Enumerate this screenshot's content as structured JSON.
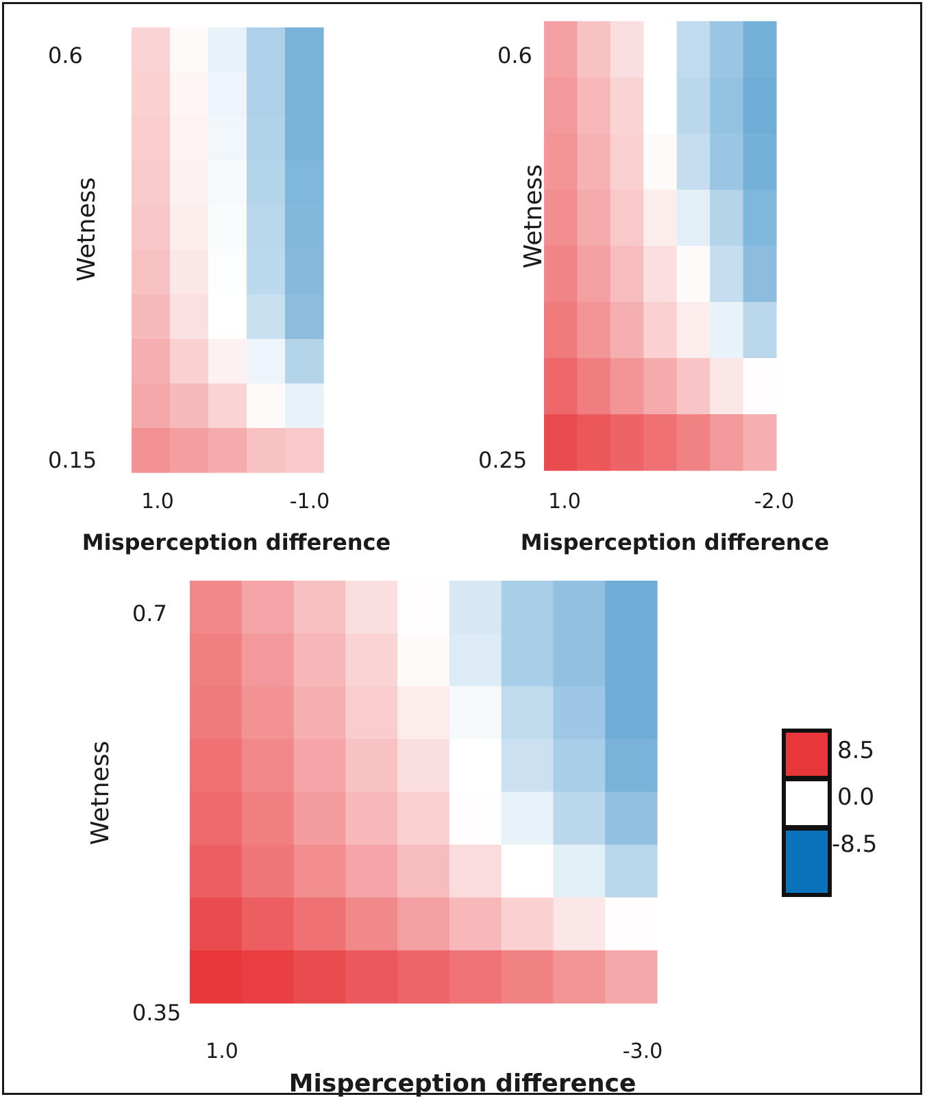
{
  "chart_data": [
    {
      "type": "heatmap",
      "xlabel": "Misperception difference",
      "ylabel": "Wetness",
      "x_tick_labels": [
        "1.0",
        "-1.0"
      ],
      "y_tick_labels": [
        "0.6",
        "0.15"
      ],
      "x_range": [
        1.0,
        -1.0
      ],
      "y_range": [
        0.15,
        0.6
      ],
      "n_cols": 5,
      "n_rows": 10,
      "values_top_to_bottom": [
        [
          1.8,
          0.2,
          -0.8,
          -2.8,
          -4.6
        ],
        [
          2.0,
          0.4,
          -0.6,
          -2.8,
          -4.6
        ],
        [
          2.1,
          0.5,
          -0.5,
          -2.7,
          -4.6
        ],
        [
          2.2,
          0.6,
          -0.3,
          -2.6,
          -4.4
        ],
        [
          2.4,
          0.8,
          -0.2,
          -2.4,
          -4.3
        ],
        [
          2.6,
          1.0,
          -0.1,
          -2.3,
          -4.2
        ],
        [
          2.9,
          1.3,
          0.0,
          -1.9,
          -4.0
        ],
        [
          3.4,
          2.0,
          0.6,
          -0.6,
          -2.6
        ],
        [
          3.7,
          2.9,
          1.8,
          0.2,
          -0.8
        ],
        [
          4.6,
          4.1,
          3.6,
          2.6,
          2.3
        ]
      ]
    },
    {
      "type": "heatmap",
      "xlabel": "Misperception difference",
      "ylabel": "Wetness",
      "x_tick_labels": [
        "1.0",
        "-2.0"
      ],
      "y_tick_labels": [
        "0.6",
        "0.25"
      ],
      "x_range": [
        1.0,
        -2.0
      ],
      "y_range": [
        0.25,
        0.6
      ],
      "n_cols": 7,
      "n_rows": 8,
      "values_top_to_bottom": [
        [
          4.0,
          2.6,
          1.4,
          0.0,
          -2.2,
          -3.5,
          -4.8
        ],
        [
          4.3,
          3.0,
          1.8,
          0.0,
          -2.4,
          -3.7,
          -5.0
        ],
        [
          4.5,
          3.3,
          2.0,
          0.2,
          -2.0,
          -3.5,
          -4.8
        ],
        [
          4.8,
          3.6,
          2.3,
          0.8,
          -1.0,
          -2.6,
          -4.4
        ],
        [
          5.2,
          4.0,
          2.8,
          1.4,
          0.2,
          -2.0,
          -4.0
        ],
        [
          5.6,
          4.5,
          3.4,
          2.0,
          0.8,
          -0.8,
          -2.4
        ],
        [
          6.4,
          5.5,
          4.5,
          3.6,
          2.5,
          1.0,
          0.1
        ],
        [
          7.6,
          7.1,
          6.6,
          6.0,
          5.3,
          4.3,
          3.4
        ]
      ]
    },
    {
      "type": "heatmap",
      "xlabel": "Misperception difference",
      "ylabel": "Wetness",
      "x_tick_labels": [
        "1.0",
        "-3.0"
      ],
      "y_tick_labels": [
        "0.7",
        "0.35"
      ],
      "x_range": [
        1.0,
        -3.0
      ],
      "y_range": [
        0.35,
        0.7
      ],
      "n_cols": 9,
      "n_rows": 8,
      "values_top_to_bottom": [
        [
          5.0,
          3.8,
          2.7,
          1.4,
          0.1,
          -1.4,
          -3.0,
          -3.8,
          -5.0
        ],
        [
          5.4,
          4.3,
          3.1,
          1.8,
          0.2,
          -1.2,
          -3.0,
          -3.8,
          -5.0
        ],
        [
          5.6,
          4.6,
          3.4,
          2.1,
          0.8,
          -0.3,
          -2.2,
          -3.4,
          -5.0
        ],
        [
          6.0,
          5.0,
          3.8,
          2.6,
          1.4,
          0.0,
          -1.8,
          -3.0,
          -4.6
        ],
        [
          6.3,
          5.4,
          4.2,
          3.0,
          2.0,
          0.1,
          -0.8,
          -2.4,
          -3.8
        ],
        [
          6.8,
          5.8,
          4.8,
          3.8,
          2.8,
          1.5,
          0.0,
          -1.0,
          -2.4
        ],
        [
          7.6,
          6.8,
          6.0,
          5.0,
          4.0,
          3.0,
          2.0,
          1.0,
          0.1
        ],
        [
          8.5,
          8.1,
          7.6,
          7.0,
          6.5,
          5.9,
          5.3,
          4.5,
          3.7
        ]
      ]
    }
  ],
  "legend": {
    "entries": [
      {
        "label": "8.5",
        "color": "#e8363a"
      },
      {
        "label": "0.0",
        "color": "#ffffff"
      },
      {
        "label": "-8.5",
        "color": "#0a73bb"
      }
    ]
  },
  "colors": {
    "positive": "#e8363a",
    "zero": "#ffffff",
    "negative": "#0a73bb"
  }
}
